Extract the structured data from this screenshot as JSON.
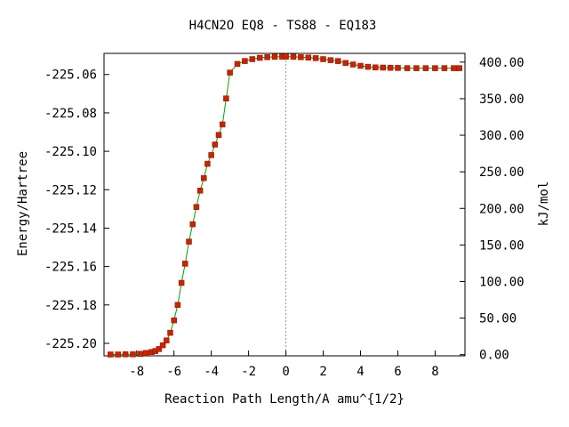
{
  "chart_data": {
    "type": "line",
    "title": "H4CN2O   EQ8 - TS88 - EQ183",
    "xlabel": "Reaction Path Length/A amu^{1/2}",
    "ylabel": "Energy/Hartree",
    "y2label": "kJ/mol",
    "xlim": [
      -9.75,
      9.6
    ],
    "ylim": [
      -225.2065,
      -225.049
    ],
    "xticks": [
      -8,
      -6,
      -4,
      -2,
      0,
      2,
      4,
      6,
      8
    ],
    "xtick_labels": [
      "-8",
      "-6",
      "-4",
      "-2",
      "0",
      "2",
      "4",
      "6",
      "8"
    ],
    "yticks": [
      -225.06,
      -225.08,
      -225.1,
      -225.12,
      -225.14,
      -225.16,
      -225.18,
      -225.2
    ],
    "ytick_labels": [
      "-225.06",
      "-225.08",
      "-225.10",
      "-225.12",
      "-225.14",
      "-225.16",
      "-225.18",
      "-225.20"
    ],
    "y2_zero_hartree": -225.2059,
    "y2ticks": [
      0,
      50,
      100,
      150,
      200,
      250,
      300,
      350,
      400
    ],
    "y2tick_labels": [
      "0.00",
      "50.00",
      "100.00",
      "150.00",
      "200.00",
      "250.00",
      "300.00",
      "350.00",
      "400.00"
    ],
    "ts_marker_x": 0,
    "grid": false,
    "line_color": "#00a000",
    "marker_color": "#cc2200",
    "ts_line_color": "#999999",
    "series": [
      {
        "x": [
          -9.4,
          -9.0,
          -8.6,
          -8.2,
          -7.8,
          -7.5,
          -7.2,
          -7.0,
          -6.8,
          -6.6,
          -6.4,
          -6.2,
          -6.0,
          -5.8,
          -5.6,
          -5.4,
          -5.2,
          -5.0,
          -4.8,
          -4.6,
          -4.4,
          -4.2,
          -4.0,
          -3.8,
          -3.6,
          -3.4,
          -3.2,
          -3.0,
          -2.6,
          -2.2,
          -1.8,
          -1.4,
          -1.0,
          -0.6,
          -0.2,
          0.0,
          0.4,
          0.8,
          1.2,
          1.6,
          2.0,
          2.4,
          2.8,
          3.2,
          3.6,
          4.0,
          4.4,
          4.8,
          5.2,
          5.6,
          6.0,
          6.5,
          7.0,
          7.5,
          8.0,
          8.5,
          9.0,
          9.3
        ],
        "y": [
          -225.2058,
          -225.2058,
          -225.2057,
          -225.2057,
          -225.2055,
          -225.205,
          -225.2045,
          -225.204,
          -225.203,
          -225.201,
          -225.1985,
          -225.1945,
          -225.188,
          -225.18,
          -225.1685,
          -225.1585,
          -225.147,
          -225.138,
          -225.129,
          -225.1205,
          -225.114,
          -225.1065,
          -225.102,
          -225.0965,
          -225.0915,
          -225.086,
          -225.0725,
          -225.059,
          -225.0545,
          -225.053,
          -225.052,
          -225.0513,
          -225.051,
          -225.0508,
          -225.0507,
          -225.0507,
          -225.0508,
          -225.051,
          -225.0512,
          -225.0515,
          -225.052,
          -225.0525,
          -225.053,
          -225.054,
          -225.0548,
          -225.0555,
          -225.056,
          -225.0563,
          -225.0564,
          -225.0565,
          -225.0566,
          -225.0567,
          -225.0567,
          -225.0567,
          -225.0567,
          -225.0567,
          -225.0567,
          -225.0567
        ]
      }
    ]
  }
}
